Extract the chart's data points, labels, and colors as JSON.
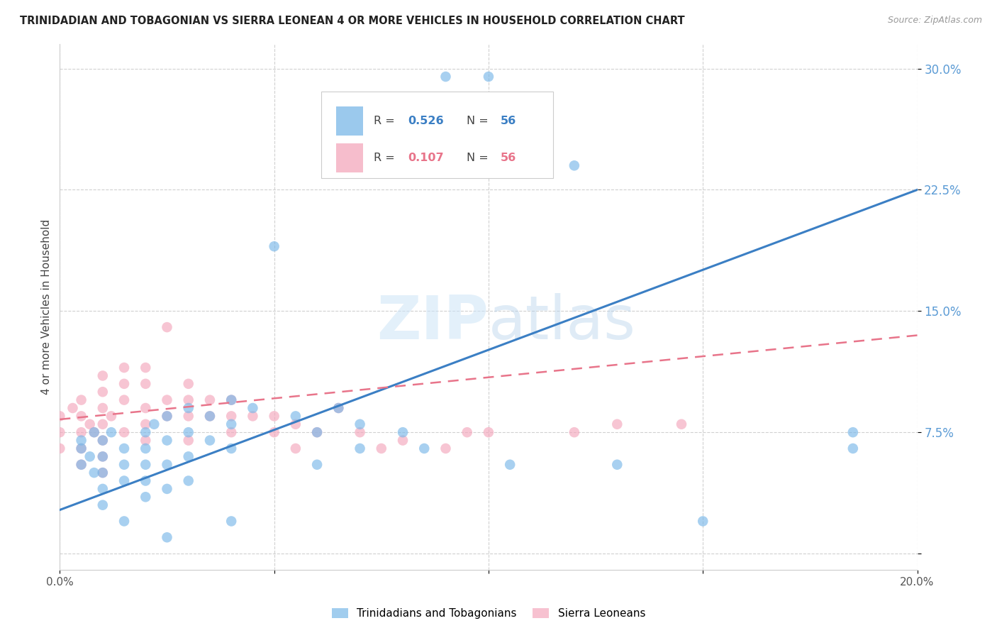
{
  "title": "TRINIDADIAN AND TOBAGONIAN VS SIERRA LEONEAN 4 OR MORE VEHICLES IN HOUSEHOLD CORRELATION CHART",
  "source": "Source: ZipAtlas.com",
  "ylabel": "4 or more Vehicles in Household",
  "xlim": [
    0.0,
    0.2
  ],
  "ylim": [
    -0.01,
    0.315
  ],
  "xticks": [
    0.0,
    0.05,
    0.1,
    0.15,
    0.2
  ],
  "xtick_labels": [
    "0.0%",
    "",
    "",
    "",
    "20.0%"
  ],
  "yticks": [
    0.0,
    0.075,
    0.15,
    0.225,
    0.3
  ],
  "ytick_labels": [
    "",
    "7.5%",
    "15.0%",
    "22.5%",
    "30.0%"
  ],
  "R_blue": 0.526,
  "N_blue": 56,
  "R_pink": 0.107,
  "N_pink": 56,
  "blue_color": "#7ab8e8",
  "pink_color": "#f4a7bc",
  "blue_line_color": "#3b7fc4",
  "pink_line_color": "#e8748a",
  "legend_label_blue": "Trinidadians and Tobagonians",
  "legend_label_pink": "Sierra Leoneans",
  "blue_line_x0": 0.0,
  "blue_line_y0": 0.027,
  "blue_line_x1": 0.2,
  "blue_line_y1": 0.225,
  "pink_line_x0": 0.0,
  "pink_line_x1": 0.2,
  "pink_line_y0": 0.083,
  "pink_line_y1": 0.135,
  "blue_pts": [
    [
      0.005,
      0.055
    ],
    [
      0.005,
      0.065
    ],
    [
      0.005,
      0.07
    ],
    [
      0.007,
      0.06
    ],
    [
      0.008,
      0.075
    ],
    [
      0.008,
      0.05
    ],
    [
      0.01,
      0.07
    ],
    [
      0.01,
      0.06
    ],
    [
      0.01,
      0.05
    ],
    [
      0.01,
      0.04
    ],
    [
      0.01,
      0.03
    ],
    [
      0.012,
      0.075
    ],
    [
      0.015,
      0.065
    ],
    [
      0.015,
      0.055
    ],
    [
      0.015,
      0.045
    ],
    [
      0.015,
      0.02
    ],
    [
      0.02,
      0.075
    ],
    [
      0.02,
      0.065
    ],
    [
      0.02,
      0.055
    ],
    [
      0.02,
      0.045
    ],
    [
      0.02,
      0.035
    ],
    [
      0.022,
      0.08
    ],
    [
      0.025,
      0.085
    ],
    [
      0.025,
      0.07
    ],
    [
      0.025,
      0.055
    ],
    [
      0.025,
      0.04
    ],
    [
      0.025,
      0.01
    ],
    [
      0.03,
      0.09
    ],
    [
      0.03,
      0.075
    ],
    [
      0.03,
      0.06
    ],
    [
      0.03,
      0.045
    ],
    [
      0.035,
      0.085
    ],
    [
      0.035,
      0.07
    ],
    [
      0.04,
      0.095
    ],
    [
      0.04,
      0.08
    ],
    [
      0.04,
      0.065
    ],
    [
      0.04,
      0.02
    ],
    [
      0.045,
      0.09
    ],
    [
      0.05,
      0.19
    ],
    [
      0.055,
      0.085
    ],
    [
      0.06,
      0.075
    ],
    [
      0.06,
      0.055
    ],
    [
      0.065,
      0.09
    ],
    [
      0.07,
      0.08
    ],
    [
      0.07,
      0.065
    ],
    [
      0.08,
      0.075
    ],
    [
      0.085,
      0.065
    ],
    [
      0.09,
      0.295
    ],
    [
      0.1,
      0.295
    ],
    [
      0.105,
      0.055
    ],
    [
      0.11,
      0.27
    ],
    [
      0.12,
      0.24
    ],
    [
      0.13,
      0.055
    ],
    [
      0.15,
      0.02
    ],
    [
      0.185,
      0.075
    ],
    [
      0.185,
      0.065
    ]
  ],
  "pink_pts": [
    [
      0.0,
      0.085
    ],
    [
      0.0,
      0.075
    ],
    [
      0.0,
      0.065
    ],
    [
      0.003,
      0.09
    ],
    [
      0.005,
      0.095
    ],
    [
      0.005,
      0.085
    ],
    [
      0.005,
      0.075
    ],
    [
      0.005,
      0.065
    ],
    [
      0.005,
      0.055
    ],
    [
      0.007,
      0.08
    ],
    [
      0.008,
      0.075
    ],
    [
      0.01,
      0.11
    ],
    [
      0.01,
      0.1
    ],
    [
      0.01,
      0.09
    ],
    [
      0.01,
      0.08
    ],
    [
      0.01,
      0.07
    ],
    [
      0.01,
      0.06
    ],
    [
      0.01,
      0.05
    ],
    [
      0.012,
      0.085
    ],
    [
      0.015,
      0.115
    ],
    [
      0.015,
      0.105
    ],
    [
      0.015,
      0.095
    ],
    [
      0.015,
      0.075
    ],
    [
      0.02,
      0.115
    ],
    [
      0.02,
      0.105
    ],
    [
      0.02,
      0.09
    ],
    [
      0.02,
      0.08
    ],
    [
      0.02,
      0.07
    ],
    [
      0.025,
      0.14
    ],
    [
      0.025,
      0.095
    ],
    [
      0.025,
      0.085
    ],
    [
      0.03,
      0.105
    ],
    [
      0.03,
      0.095
    ],
    [
      0.03,
      0.085
    ],
    [
      0.03,
      0.07
    ],
    [
      0.035,
      0.095
    ],
    [
      0.035,
      0.085
    ],
    [
      0.04,
      0.095
    ],
    [
      0.04,
      0.085
    ],
    [
      0.04,
      0.075
    ],
    [
      0.045,
      0.085
    ],
    [
      0.05,
      0.085
    ],
    [
      0.05,
      0.075
    ],
    [
      0.055,
      0.08
    ],
    [
      0.055,
      0.065
    ],
    [
      0.06,
      0.075
    ],
    [
      0.065,
      0.09
    ],
    [
      0.07,
      0.075
    ],
    [
      0.075,
      0.065
    ],
    [
      0.08,
      0.07
    ],
    [
      0.09,
      0.065
    ],
    [
      0.095,
      0.075
    ],
    [
      0.1,
      0.075
    ],
    [
      0.12,
      0.075
    ],
    [
      0.13,
      0.08
    ],
    [
      0.145,
      0.08
    ]
  ],
  "background_color": "#ffffff",
  "grid_color": "#d0d0d0",
  "watermark": "ZIPatlas",
  "watermark_color": "#ddeeff"
}
